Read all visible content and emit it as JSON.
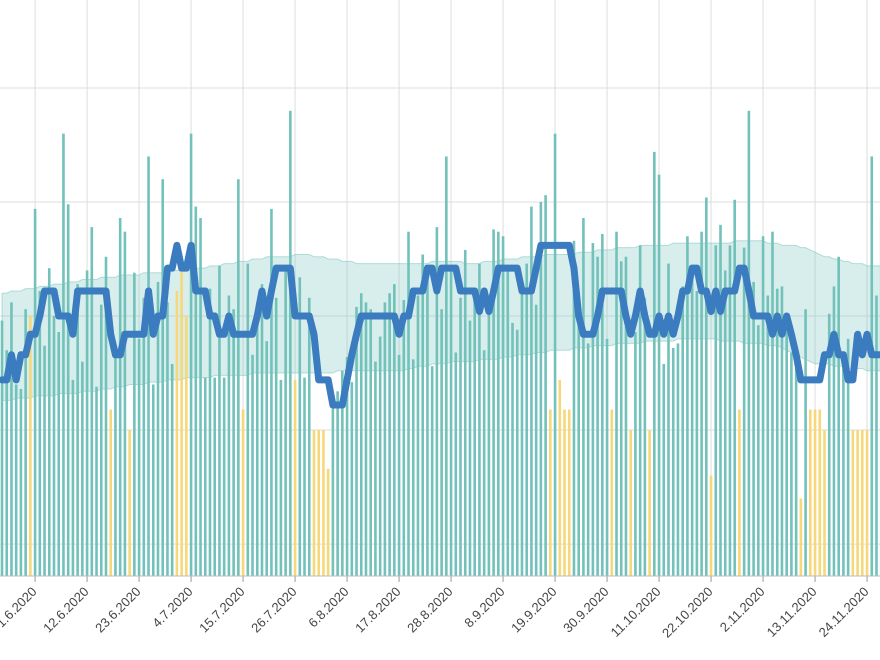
{
  "chart_data": {
    "type": "bar",
    "categories": [
      null,
      null,
      null,
      null,
      null,
      null,
      null,
      "1.6.2020",
      null,
      null,
      null,
      null,
      null,
      null,
      null,
      null,
      null,
      null,
      "12.6.2020",
      null,
      null,
      null,
      null,
      null,
      null,
      null,
      null,
      null,
      null,
      "23.6.2020",
      null,
      null,
      null,
      null,
      null,
      null,
      null,
      null,
      null,
      null,
      "4.7.2020",
      null,
      null,
      null,
      null,
      null,
      null,
      null,
      null,
      null,
      null,
      "15.7.2020",
      null,
      null,
      null,
      null,
      null,
      null,
      null,
      null,
      null,
      null,
      "26.7.2020",
      null,
      null,
      null,
      null,
      null,
      null,
      null,
      null,
      null,
      null,
      "6.8.2020",
      null,
      null,
      null,
      null,
      null,
      null,
      null,
      null,
      null,
      null,
      "17.8.2020",
      null,
      null,
      null,
      null,
      null,
      null,
      null,
      null,
      null,
      null,
      "28.8.2020",
      null,
      null,
      null,
      null,
      null,
      null,
      null,
      null,
      null,
      null,
      "8.9.2020",
      null,
      null,
      null,
      null,
      null,
      null,
      null,
      null,
      null,
      null,
      "19.9.2020",
      null,
      null,
      null,
      null,
      null,
      null,
      null,
      null,
      null,
      null,
      "30.9.2020",
      null,
      null,
      null,
      null,
      null,
      null,
      null,
      null,
      null,
      null,
      "11.10.2020",
      null,
      null,
      null,
      null,
      null,
      null,
      null,
      null,
      null,
      null,
      "22.10.2020",
      null,
      null,
      null,
      null,
      null,
      null,
      null,
      null,
      null,
      null,
      "2.11.2020",
      null,
      null,
      null,
      null,
      null,
      null,
      null,
      null,
      null,
      null,
      "13.11.2020",
      null,
      null,
      null,
      null,
      null,
      null,
      null,
      null,
      null,
      null,
      "24.11.2020",
      null,
      null,
      null
    ],
    "series": [
      {
        "color": "#72c1ba",
        "values": [
          19.8,
          18.5,
          20.6,
          17.0,
          16.8,
          20.3,
          null,
          24.7,
          21.1,
          18.7,
          22.1,
          20.0,
          19.3,
          28.0,
          24.9,
          17.2,
          21.4,
          18.0,
          22.0,
          23.9,
          16.9,
          20.5,
          22.6,
          null,
          18.2,
          24.3,
          23.7,
          null,
          21.9,
          19.0,
          20.8,
          27.0,
          17.0,
          21.5,
          26.0,
          20.6,
          17.9,
          null,
          null,
          null,
          28.0,
          24.8,
          24.3,
          17.3,
          21.2,
          17.3,
          22.2,
          17.3,
          20.9,
          20.3,
          26.0,
          null,
          22.3,
          18.3,
          20.6,
          21.4,
          18.9,
          24.7,
          20.8,
          17.2,
          22.1,
          29.0,
          null,
          21.7,
          17.3,
          20.8,
          null,
          null,
          null,
          null,
          16.4,
          16.7,
          17.6,
          18.2,
          17.1,
          20.4,
          21.0,
          20.6,
          20.3,
          18.0,
          19.1,
          20.6,
          21.0,
          21.4,
          18.3,
          20.7,
          23.7,
          18.1,
          20.9,
          22.7,
          21.6,
          17.8,
          23.9,
          20.3,
          27.0,
          22.0,
          18.4,
          20.8,
          22.9,
          19.8,
          21.2,
          22.3,
          18.5,
          20.2,
          23.8,
          23.7,
          23.5,
          22.2,
          19.7,
          19.4,
          21.0,
          22.3,
          24.8,
          20.5,
          25.0,
          25.3,
          null,
          28.0,
          null,
          null,
          null,
          23.3,
          20.8,
          24.3,
          18.8,
          23.2,
          22.6,
          23.6,
          19.0,
          null,
          23.7,
          22.4,
          22.6,
          null,
          19.3,
          23.1,
          20.8,
          null,
          27.2,
          26.2,
          17.9,
          22.3,
          18.6,
          18.8,
          21.3,
          23.5,
          21.6,
          21.1,
          23.7,
          25.2,
          null,
          23.1,
          24.0,
          22.0,
          23.1,
          25.1,
          null,
          23.0,
          29.0,
          21.5,
          19.6,
          23.5,
          20.9,
          23.7,
          21.2,
          21.3,
          20.0,
          18.4,
          18.5,
          null,
          20.3,
          null,
          null,
          null,
          null,
          20.1,
          21.3,
          22.6,
          18.1,
          19.0,
          null,
          null,
          null,
          null,
          27.0,
          20.9,
          24.3
        ]
      },
      {
        "color": "#f6d87a",
        "values": [
          null,
          null,
          null,
          null,
          null,
          null,
          20.0,
          null,
          null,
          null,
          null,
          null,
          null,
          null,
          null,
          null,
          null,
          null,
          null,
          null,
          null,
          null,
          null,
          15.9,
          null,
          null,
          null,
          15.0,
          null,
          null,
          null,
          null,
          null,
          null,
          null,
          null,
          null,
          21.1,
          22.1,
          20.0,
          null,
          null,
          null,
          null,
          null,
          null,
          null,
          null,
          null,
          null,
          null,
          15.9,
          null,
          null,
          null,
          null,
          null,
          null,
          null,
          null,
          null,
          null,
          17.2,
          null,
          null,
          null,
          15.0,
          15.0,
          15.0,
          13.3,
          null,
          null,
          null,
          null,
          null,
          null,
          null,
          null,
          null,
          null,
          null,
          null,
          null,
          null,
          null,
          null,
          null,
          null,
          null,
          null,
          null,
          null,
          null,
          null,
          null,
          null,
          null,
          null,
          null,
          null,
          null,
          null,
          null,
          null,
          null,
          null,
          null,
          null,
          null,
          null,
          null,
          null,
          null,
          null,
          null,
          null,
          15.9,
          null,
          17.2,
          15.9,
          15.9,
          null,
          null,
          null,
          null,
          null,
          null,
          null,
          null,
          15.9,
          null,
          null,
          null,
          15.0,
          null,
          null,
          null,
          15.0,
          null,
          null,
          null,
          null,
          null,
          null,
          null,
          null,
          null,
          null,
          null,
          null,
          13.0,
          null,
          null,
          null,
          null,
          null,
          15.9,
          null,
          null,
          null,
          null,
          null,
          null,
          null,
          null,
          null,
          null,
          null,
          null,
          12.0,
          null,
          15.9,
          15.9,
          15.9,
          15.0,
          null,
          null,
          null,
          null,
          null,
          15.0,
          15.0,
          15.0,
          15.0,
          null,
          null,
          null
        ]
      }
    ],
    "line": {
      "color": "#3b7bbf",
      "values": [
        17.2,
        17.2,
        18.3,
        17.2,
        18.3,
        18.3,
        19.2,
        19.2,
        20.0,
        21.1,
        21.1,
        21.1,
        20.0,
        20.0,
        20.0,
        19.2,
        21.1,
        21.1,
        21.1,
        21.1,
        21.1,
        21.1,
        21.1,
        19.2,
        18.3,
        18.3,
        19.2,
        19.2,
        19.2,
        19.2,
        19.2,
        21.1,
        19.2,
        20.0,
        20.0,
        22.1,
        22.1,
        23.1,
        22.1,
        22.1,
        23.1,
        21.1,
        21.1,
        21.1,
        20.0,
        20.0,
        19.2,
        19.2,
        20.0,
        19.2,
        19.2,
        19.2,
        19.2,
        19.2,
        20.0,
        21.1,
        20.0,
        21.1,
        22.1,
        22.1,
        22.1,
        22.1,
        20.0,
        20.0,
        20.0,
        20.0,
        19.2,
        17.2,
        17.2,
        17.2,
        16.1,
        16.1,
        16.1,
        17.2,
        18.3,
        19.2,
        20.0,
        20.0,
        20.0,
        20.0,
        20.0,
        20.0,
        20.0,
        20.0,
        19.2,
        20.0,
        20.0,
        21.1,
        21.1,
        21.1,
        22.1,
        22.1,
        21.1,
        22.1,
        22.1,
        22.1,
        22.1,
        21.1,
        21.1,
        21.1,
        21.1,
        20.2,
        21.1,
        20.2,
        21.1,
        22.1,
        22.1,
        22.1,
        22.1,
        22.1,
        21.1,
        21.1,
        21.1,
        22.1,
        23.1,
        23.1,
        23.1,
        23.1,
        23.1,
        23.1,
        23.1,
        22.1,
        20.0,
        19.2,
        19.2,
        19.2,
        20.0,
        21.1,
        21.1,
        21.1,
        21.1,
        21.1,
        20.0,
        19.2,
        20.0,
        21.1,
        20.0,
        19.2,
        19.2,
        20.0,
        19.2,
        20.0,
        19.2,
        20.0,
        21.1,
        21.1,
        22.1,
        22.1,
        21.1,
        21.1,
        20.2,
        21.1,
        20.2,
        21.1,
        21.1,
        21.1,
        22.1,
        22.1,
        21.1,
        20.0,
        20.0,
        20.0,
        20.0,
        19.2,
        20.0,
        19.2,
        20.0,
        19.2,
        18.3,
        17.2,
        17.2,
        17.2,
        17.2,
        17.2,
        18.3,
        18.3,
        19.2,
        18.3,
        18.3,
        17.2,
        17.2,
        19.2,
        18.3,
        19.2,
        18.3,
        18.3,
        18.3
      ]
    },
    "band": {
      "color": "#72c1ba",
      "upper": [
        21.0,
        21.0,
        21.1,
        21.1,
        21.1,
        21.2,
        21.2,
        21.2,
        21.3,
        21.3,
        21.3,
        21.4,
        21.4,
        21.4,
        21.5,
        21.5,
        21.5,
        21.6,
        21.6,
        21.6,
        21.6,
        21.7,
        21.7,
        21.7,
        21.7,
        21.8,
        21.8,
        21.8,
        21.8,
        21.8,
        21.9,
        21.9,
        21.9,
        21.9,
        21.9,
        22.0,
        22.0,
        22.0,
        22.0,
        22.0,
        22.0,
        22.1,
        22.1,
        22.1,
        22.2,
        22.2,
        22.2,
        22.3,
        22.3,
        22.3,
        22.4,
        22.4,
        22.4,
        22.5,
        22.5,
        22.5,
        22.6,
        22.6,
        22.6,
        22.6,
        22.6,
        22.6,
        22.7,
        22.7,
        22.7,
        22.7,
        22.6,
        22.6,
        22.6,
        22.5,
        22.5,
        22.5,
        22.4,
        22.4,
        22.4,
        22.3,
        22.3,
        22.3,
        22.3,
        22.3,
        22.3,
        22.3,
        22.3,
        22.3,
        22.3,
        22.3,
        22.3,
        22.3,
        22.3,
        22.3,
        22.3,
        22.4,
        22.4,
        22.4,
        22.4,
        22.4,
        22.4,
        22.4,
        22.3,
        22.3,
        22.3,
        22.3,
        22.4,
        22.4,
        22.4,
        22.4,
        22.5,
        22.5,
        22.5,
        22.5,
        22.6,
        22.6,
        22.6,
        22.6,
        22.6,
        22.7,
        22.7,
        22.7,
        22.7,
        22.7,
        22.7,
        22.7,
        22.8,
        22.8,
        22.8,
        22.8,
        22.9,
        22.9,
        22.9,
        22.9,
        23.0,
        23.0,
        23.0,
        23.0,
        23.0,
        23.1,
        23.1,
        23.1,
        23.1,
        23.1,
        23.1,
        23.1,
        23.2,
        23.2,
        23.2,
        23.2,
        23.2,
        23.2,
        23.2,
        23.2,
        23.2,
        23.2,
        23.2,
        23.2,
        23.2,
        23.3,
        23.3,
        23.3,
        23.3,
        23.3,
        23.3,
        23.3,
        23.2,
        23.2,
        23.2,
        23.1,
        23.1,
        23.1,
        23.1,
        23.0,
        23.0,
        22.9,
        22.8,
        22.7,
        22.6,
        22.6,
        22.5,
        22.5,
        22.4,
        22.4,
        22.3,
        22.3,
        22.3,
        22.2,
        22.2,
        22.2,
        22.2
      ],
      "lower": [
        16.3,
        16.3,
        16.3,
        16.4,
        16.4,
        16.4,
        16.4,
        16.5,
        16.5,
        16.5,
        16.5,
        16.5,
        16.6,
        16.6,
        16.6,
        16.6,
        16.6,
        16.7,
        16.7,
        16.7,
        16.7,
        16.8,
        16.8,
        16.8,
        16.9,
        16.9,
        16.9,
        17.0,
        17.0,
        17.0,
        17.0,
        17.1,
        17.1,
        17.1,
        17.1,
        17.2,
        17.2,
        17.2,
        17.2,
        17.3,
        17.3,
        17.3,
        17.3,
        17.3,
        17.3,
        17.4,
        17.4,
        17.4,
        17.4,
        17.4,
        17.4,
        17.4,
        17.4,
        17.5,
        17.5,
        17.5,
        17.5,
        17.5,
        17.5,
        17.5,
        17.5,
        17.5,
        17.5,
        17.5,
        17.5,
        17.5,
        17.5,
        17.5,
        17.5,
        17.5,
        17.5,
        17.6,
        17.6,
        17.6,
        17.6,
        17.6,
        17.6,
        17.6,
        17.6,
        17.6,
        17.6,
        17.6,
        17.6,
        17.6,
        17.6,
        17.6,
        17.7,
        17.7,
        17.8,
        17.8,
        17.8,
        17.9,
        17.9,
        17.9,
        17.9,
        18.0,
        18.0,
        18.0,
        18.0,
        18.0,
        18.0,
        18.1,
        18.1,
        18.1,
        18.1,
        18.1,
        18.2,
        18.2,
        18.2,
        18.3,
        18.3,
        18.3,
        18.3,
        18.4,
        18.4,
        18.4,
        18.5,
        18.5,
        18.5,
        18.5,
        18.5,
        18.6,
        18.6,
        18.6,
        18.6,
        18.7,
        18.7,
        18.7,
        18.7,
        18.7,
        18.8,
        18.8,
        18.8,
        18.8,
        18.8,
        18.8,
        18.9,
        18.9,
        18.9,
        18.9,
        18.9,
        18.9,
        18.9,
        19.0,
        19.0,
        19.0,
        19.0,
        19.0,
        19.0,
        19.0,
        19.0,
        19.0,
        18.9,
        18.9,
        18.9,
        18.9,
        18.9,
        18.8,
        18.8,
        18.8,
        18.8,
        18.8,
        18.7,
        18.7,
        18.7,
        18.6,
        18.5,
        18.4,
        18.3,
        18.2,
        18.1,
        18.0,
        17.9,
        17.9,
        17.9,
        17.9,
        17.8,
        17.8,
        17.8,
        17.7,
        17.7,
        17.7,
        17.7,
        17.6,
        17.6,
        17.6,
        17.6
      ]
    },
    "ylim": [
      8.6,
      33.86
    ],
    "yticks": [
      10,
      15,
      20,
      25,
      30
    ],
    "grid": true
  }
}
